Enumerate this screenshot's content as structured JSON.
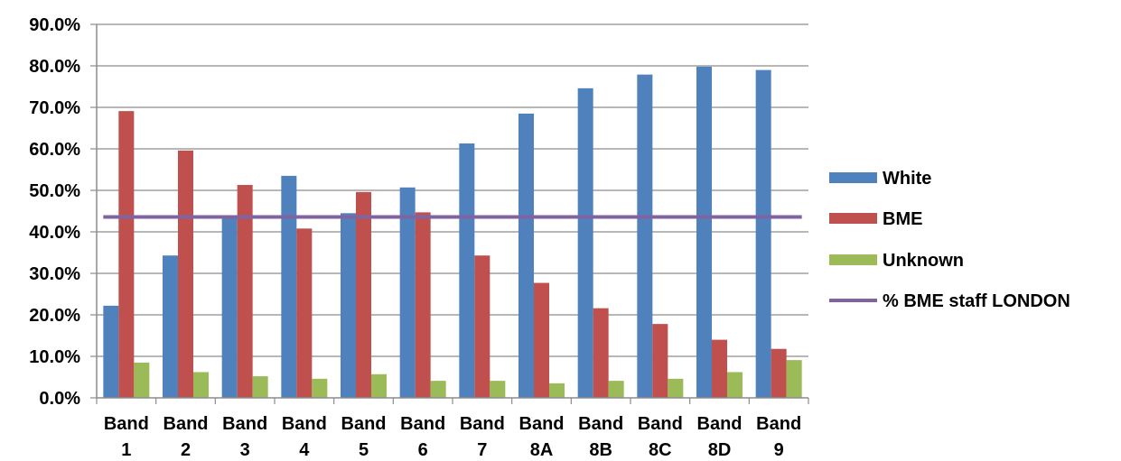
{
  "chart_data": {
    "type": "bar",
    "categories": [
      [
        "Band",
        "1"
      ],
      [
        "Band",
        "2"
      ],
      [
        "Band",
        "3"
      ],
      [
        "Band",
        "4"
      ],
      [
        "Band",
        "5"
      ],
      [
        "Band",
        "6"
      ],
      [
        "Band",
        "7"
      ],
      [
        "Band",
        "8A"
      ],
      [
        "Band",
        "8B"
      ],
      [
        "Band",
        "8C"
      ],
      [
        "Band",
        "8D"
      ],
      [
        "Band",
        "9"
      ]
    ],
    "series": [
      {
        "name": "White",
        "color": "#4f81bd",
        "values": [
          22.2,
          34.3,
          43.3,
          53.5,
          44.5,
          50.7,
          61.3,
          68.5,
          74.6,
          77.9,
          79.8,
          79.0
        ]
      },
      {
        "name": "BME",
        "color": "#c0504d",
        "values": [
          69.1,
          59.6,
          51.3,
          40.8,
          49.6,
          44.7,
          34.3,
          27.7,
          21.6,
          17.8,
          14.0,
          11.8
        ]
      },
      {
        "name": "Unknown",
        "color": "#9bbb59",
        "values": [
          8.5,
          6.2,
          5.2,
          4.6,
          5.7,
          4.1,
          4.1,
          3.5,
          4.1,
          4.6,
          6.2,
          9.1
        ]
      }
    ],
    "reference_line": {
      "name": "% BME staff LONDON",
      "color": "#8064a2",
      "value": 43.6
    },
    "ylim": [
      0,
      90
    ],
    "yticks": [
      "0.0%",
      "10.0%",
      "20.0%",
      "30.0%",
      "40.0%",
      "50.0%",
      "60.0%",
      "70.0%",
      "80.0%",
      "90.0%"
    ],
    "grid": true,
    "legend_position": "right",
    "title": "",
    "xlabel": "",
    "ylabel": ""
  }
}
